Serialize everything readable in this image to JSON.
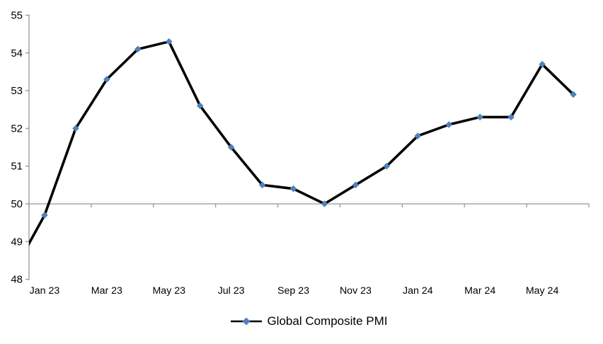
{
  "chart_data": {
    "type": "line",
    "legend_position": "bottom",
    "categories": [
      "Dec 22",
      "Jan 23",
      "Feb 23",
      "Mar 23",
      "Apr 23",
      "May 23",
      "Jun 23",
      "Jul 23",
      "Aug 23",
      "Sep 23",
      "Oct 23",
      "Nov 23",
      "Dec 23",
      "Jan 24",
      "Feb 24",
      "Mar 24",
      "Apr 24",
      "May 24",
      "Jun 24"
    ],
    "series": [
      {
        "name": "Global Composite PMI",
        "values": [
          48.2,
          49.7,
          52.0,
          53.3,
          54.1,
          54.3,
          52.6,
          51.5,
          50.5,
          50.4,
          50.0,
          50.5,
          51.0,
          51.8,
          52.1,
          52.3,
          52.3,
          53.7,
          52.9
        ],
        "line_color": "#000000",
        "marker": "diamond",
        "marker_color": "#4F81BD"
      }
    ],
    "first_category_clipped_at_left_axis": true,
    "x_tick_labels": [
      "Jan 23",
      "Mar 23",
      "May 23",
      "Jul 23",
      "Sep 23",
      "Nov 23",
      "Jan 24",
      "Mar 24",
      "May 24"
    ],
    "x_tick_label_every_n_categories": 2,
    "y_ticks": [
      48,
      49,
      50,
      51,
      52,
      53,
      54,
      55
    ],
    "ylim": [
      48,
      55
    ],
    "x_axis_crosses_at": 50,
    "grid": "none",
    "axis_color": "#969696",
    "label_color": "#000000"
  }
}
